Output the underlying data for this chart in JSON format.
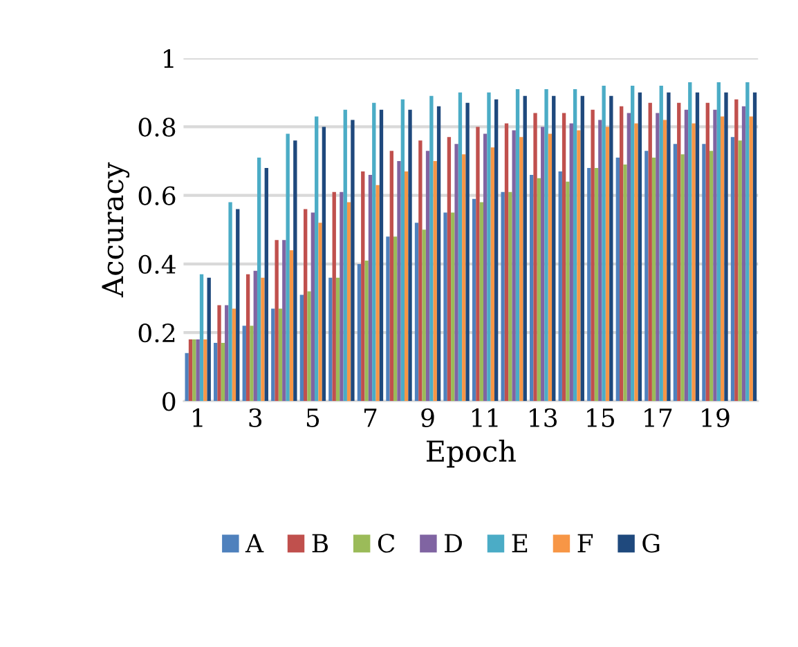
{
  "chart_data": {
    "type": "bar",
    "xlabel": "Epoch",
    "ylabel": "Accuracy",
    "categories": [
      "1",
      null,
      "3",
      null,
      "5",
      null,
      "7",
      null,
      "9",
      null,
      "11",
      null,
      "13",
      null,
      "15",
      null,
      "17",
      null,
      "19",
      null
    ],
    "series": [
      {
        "name": "A",
        "color": "#4f81bd",
        "values": [
          0.14,
          0.17,
          0.22,
          0.27,
          0.31,
          0.36,
          0.4,
          0.48,
          0.52,
          0.55,
          0.59,
          0.61,
          0.66,
          0.67,
          0.68,
          0.71,
          0.73,
          0.75,
          0.75,
          0.77
        ]
      },
      {
        "name": "B",
        "color": "#c0504d",
        "values": [
          0.18,
          0.28,
          0.37,
          0.47,
          0.56,
          0.61,
          0.67,
          0.73,
          0.76,
          0.77,
          0.8,
          0.81,
          0.84,
          0.84,
          0.85,
          0.86,
          0.87,
          0.87,
          0.87,
          0.88
        ]
      },
      {
        "name": "C",
        "color": "#9bbb59",
        "values": [
          0.18,
          0.17,
          0.22,
          0.27,
          0.32,
          0.36,
          0.41,
          0.48,
          0.5,
          0.55,
          0.58,
          0.61,
          0.65,
          0.64,
          0.68,
          0.69,
          0.71,
          0.72,
          0.73,
          0.76
        ]
      },
      {
        "name": "D",
        "color": "#8064a2",
        "values": [
          0.18,
          0.28,
          0.38,
          0.47,
          0.55,
          0.61,
          0.66,
          0.7,
          0.73,
          0.75,
          0.78,
          0.79,
          0.8,
          0.81,
          0.82,
          0.84,
          0.84,
          0.85,
          0.85,
          0.86
        ]
      },
      {
        "name": "E",
        "color": "#4bacc6",
        "values": [
          0.37,
          0.58,
          0.71,
          0.78,
          0.83,
          0.85,
          0.87,
          0.88,
          0.89,
          0.9,
          0.9,
          0.91,
          0.91,
          0.91,
          0.92,
          0.92,
          0.92,
          0.93,
          0.93,
          0.93
        ]
      },
      {
        "name": "F",
        "color": "#f79646",
        "values": [
          0.18,
          0.27,
          0.36,
          0.44,
          0.52,
          0.58,
          0.63,
          0.67,
          0.7,
          0.72,
          0.74,
          0.77,
          0.78,
          0.79,
          0.8,
          0.81,
          0.82,
          0.81,
          0.83,
          0.83
        ]
      },
      {
        "name": "G",
        "color": "#1f497d",
        "values": [
          0.36,
          0.56,
          0.68,
          0.76,
          0.8,
          0.82,
          0.85,
          0.85,
          0.86,
          0.87,
          0.88,
          0.89,
          0.89,
          0.89,
          0.89,
          0.9,
          0.9,
          0.9,
          0.9,
          0.9
        ]
      }
    ],
    "ylim": [
      0,
      1
    ],
    "yticks": [
      0,
      0.2,
      0.4,
      0.6,
      0.8,
      1
    ],
    "grid": "y",
    "legend": "bottom"
  }
}
